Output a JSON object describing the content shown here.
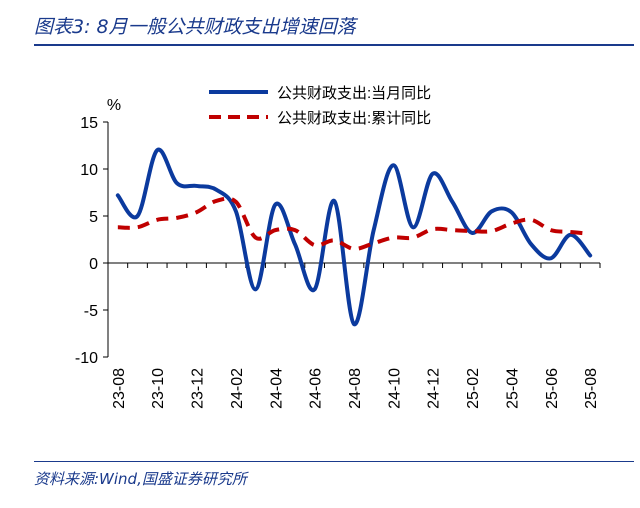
{
  "figure": {
    "title": "图表3:  8月一般公共财政支出增速回落",
    "source": "资料来源:Wind,国盛证券研究所"
  },
  "chart_data": {
    "type": "line",
    "x": [
      "23-08",
      "23-09",
      "23-10",
      "23-11",
      "23-12",
      "24-01",
      "24-02",
      "24-03",
      "24-04",
      "24-05",
      "24-06",
      "24-07",
      "24-08",
      "24-09",
      "24-10",
      "24-11",
      "24-12",
      "25-01",
      "25-02",
      "25-03",
      "25-04",
      "25-05",
      "25-06",
      "25-07",
      "25-08"
    ],
    "x_tick_labels": [
      "23-08",
      "23-10",
      "23-12",
      "24-02",
      "24-04",
      "24-06",
      "24-08",
      "24-10",
      "24-12",
      "25-02",
      "25-04",
      "25-06",
      "25-08"
    ],
    "unit_label": "%",
    "ylim": [
      -10,
      15
    ],
    "y_ticks": [
      "-10",
      "-5",
      "0",
      "5",
      "10",
      "15"
    ],
    "grid": false,
    "legend_position": "top-right",
    "series": [
      {
        "name": "公共财政支出:当月同比",
        "color": "#0b3a9e",
        "style": "solid",
        "values": [
          7.2,
          5.0,
          12.0,
          8.5,
          8.2,
          7.8,
          5.5,
          -2.8,
          6.2,
          2.0,
          -2.8,
          6.6,
          -6.5,
          3.5,
          10.4,
          3.8,
          9.5,
          6.5,
          3.2,
          5.5,
          5.4,
          2.0,
          0.5,
          3.0,
          0.8
        ]
      },
      {
        "name": "公共财政支出:累计同比",
        "color": "#c00000",
        "style": "dashed",
        "values": [
          3.8,
          3.8,
          4.6,
          4.8,
          5.4,
          6.6,
          6.5,
          2.7,
          3.5,
          3.5,
          1.9,
          2.4,
          1.5,
          2.1,
          2.7,
          2.7,
          3.6,
          3.5,
          3.4,
          3.4,
          4.2,
          4.6,
          3.5,
          3.3,
          3.1
        ]
      }
    ]
  }
}
